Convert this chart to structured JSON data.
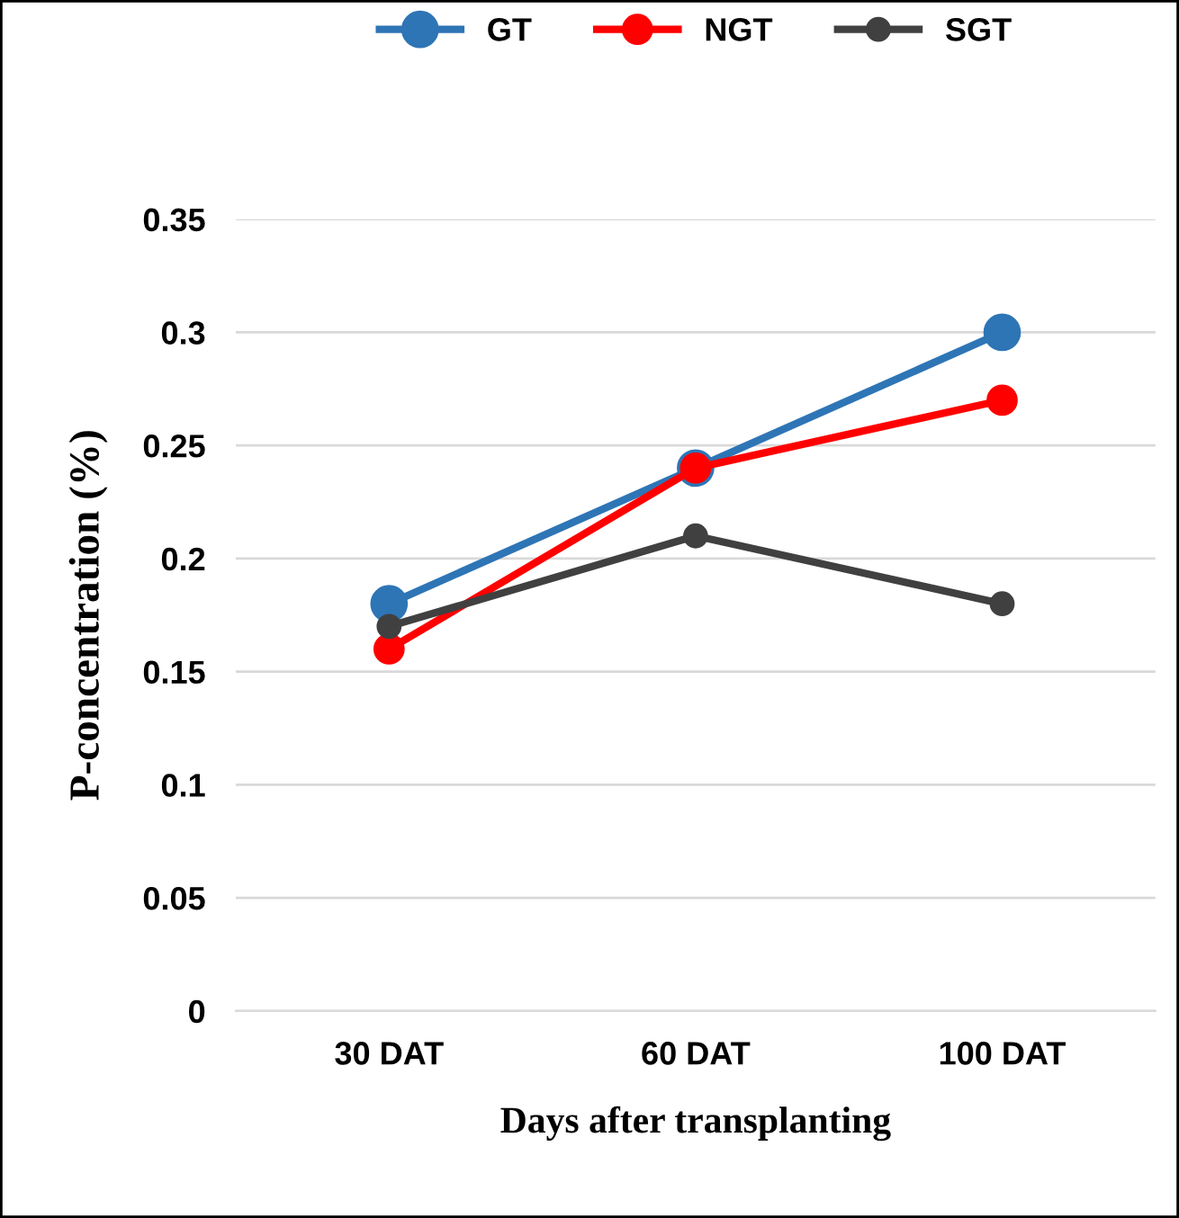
{
  "chart_data": {
    "type": "line",
    "xlabel": "Days after transplanting",
    "ylabel": "P-concentration (%)",
    "categories": [
      "30 DAT",
      "60 DAT",
      "100 DAT"
    ],
    "series": [
      {
        "name": "GT",
        "color": "#2e75b6",
        "values": [
          0.18,
          0.24,
          0.3
        ]
      },
      {
        "name": "NGT",
        "color": "#ff0000",
        "values": [
          0.16,
          0.24,
          0.27
        ]
      },
      {
        "name": "SGT",
        "color": "#404040",
        "values": [
          0.17,
          0.21,
          0.18
        ]
      }
    ],
    "ylim": [
      0,
      0.35
    ],
    "yticks": [
      0,
      0.05,
      0.1,
      0.15,
      0.2,
      0.25,
      0.3,
      0.35
    ],
    "grid": "y",
    "legend": "top",
    "marker": "circle",
    "line_style": "solid"
  }
}
